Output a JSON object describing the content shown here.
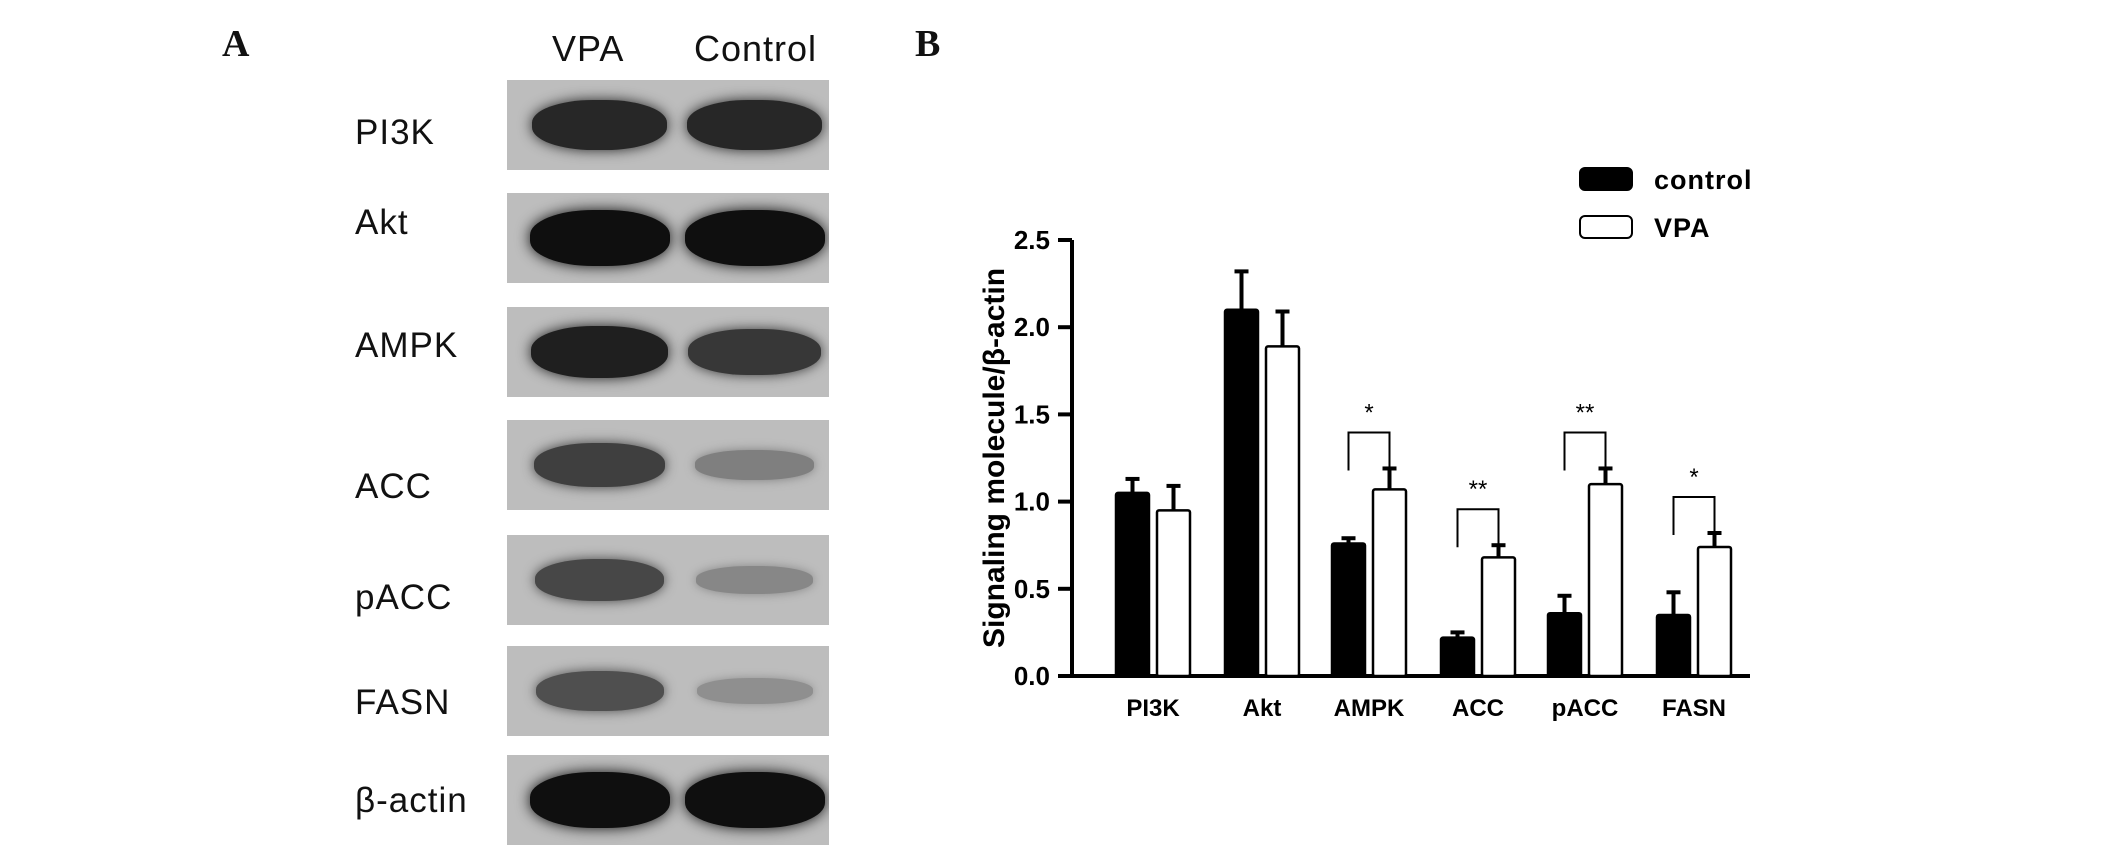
{
  "panel_a": {
    "letter": "A",
    "lanes": [
      "VPA",
      "Control"
    ],
    "blots": [
      {
        "label": "PI3K",
        "vpa": 0.85,
        "control": 0.85
      },
      {
        "label": "Akt",
        "vpa": 1.0,
        "control": 1.0
      },
      {
        "label": "AMPK",
        "vpa": 0.9,
        "control": 0.75
      },
      {
        "label": "ACC",
        "vpa": 0.7,
        "control": 0.3
      },
      {
        "label": "pACC",
        "vpa": 0.65,
        "control": 0.25
      },
      {
        "label": "FASN",
        "vpa": 0.6,
        "control": 0.2
      },
      {
        "label": "β-actin",
        "vpa": 1.0,
        "control": 1.0
      }
    ]
  },
  "panel_b": {
    "letter": "B"
  },
  "chart_data": {
    "type": "bar",
    "categories": [
      "PI3K",
      "Akt",
      "AMPK",
      "ACC",
      "pACC",
      "FASN"
    ],
    "series": [
      {
        "name": "control",
        "color": "#000000",
        "values": [
          1.05,
          2.1,
          0.76,
          0.22,
          0.36,
          0.35
        ],
        "errors": [
          0.08,
          0.22,
          0.03,
          0.03,
          0.1,
          0.13
        ]
      },
      {
        "name": "VPA",
        "color": "#ffffff",
        "values": [
          0.95,
          1.89,
          1.07,
          0.68,
          1.1,
          0.74
        ],
        "errors": [
          0.14,
          0.2,
          0.12,
          0.07,
          0.09,
          0.08
        ]
      }
    ],
    "significance": [
      {
        "category": "AMPK",
        "label": "*"
      },
      {
        "category": "ACC",
        "label": "**"
      },
      {
        "category": "pACC",
        "label": "**"
      },
      {
        "category": "FASN",
        "label": "*"
      }
    ],
    "ylabel": "Signaling molecule/β-actin",
    "xlabel": "",
    "ylim": [
      0,
      2.5
    ],
    "yticks": [
      "0.0",
      "0.5",
      "1.0",
      "1.5",
      "2.0",
      "2.5"
    ],
    "legend_position": "top-right"
  }
}
